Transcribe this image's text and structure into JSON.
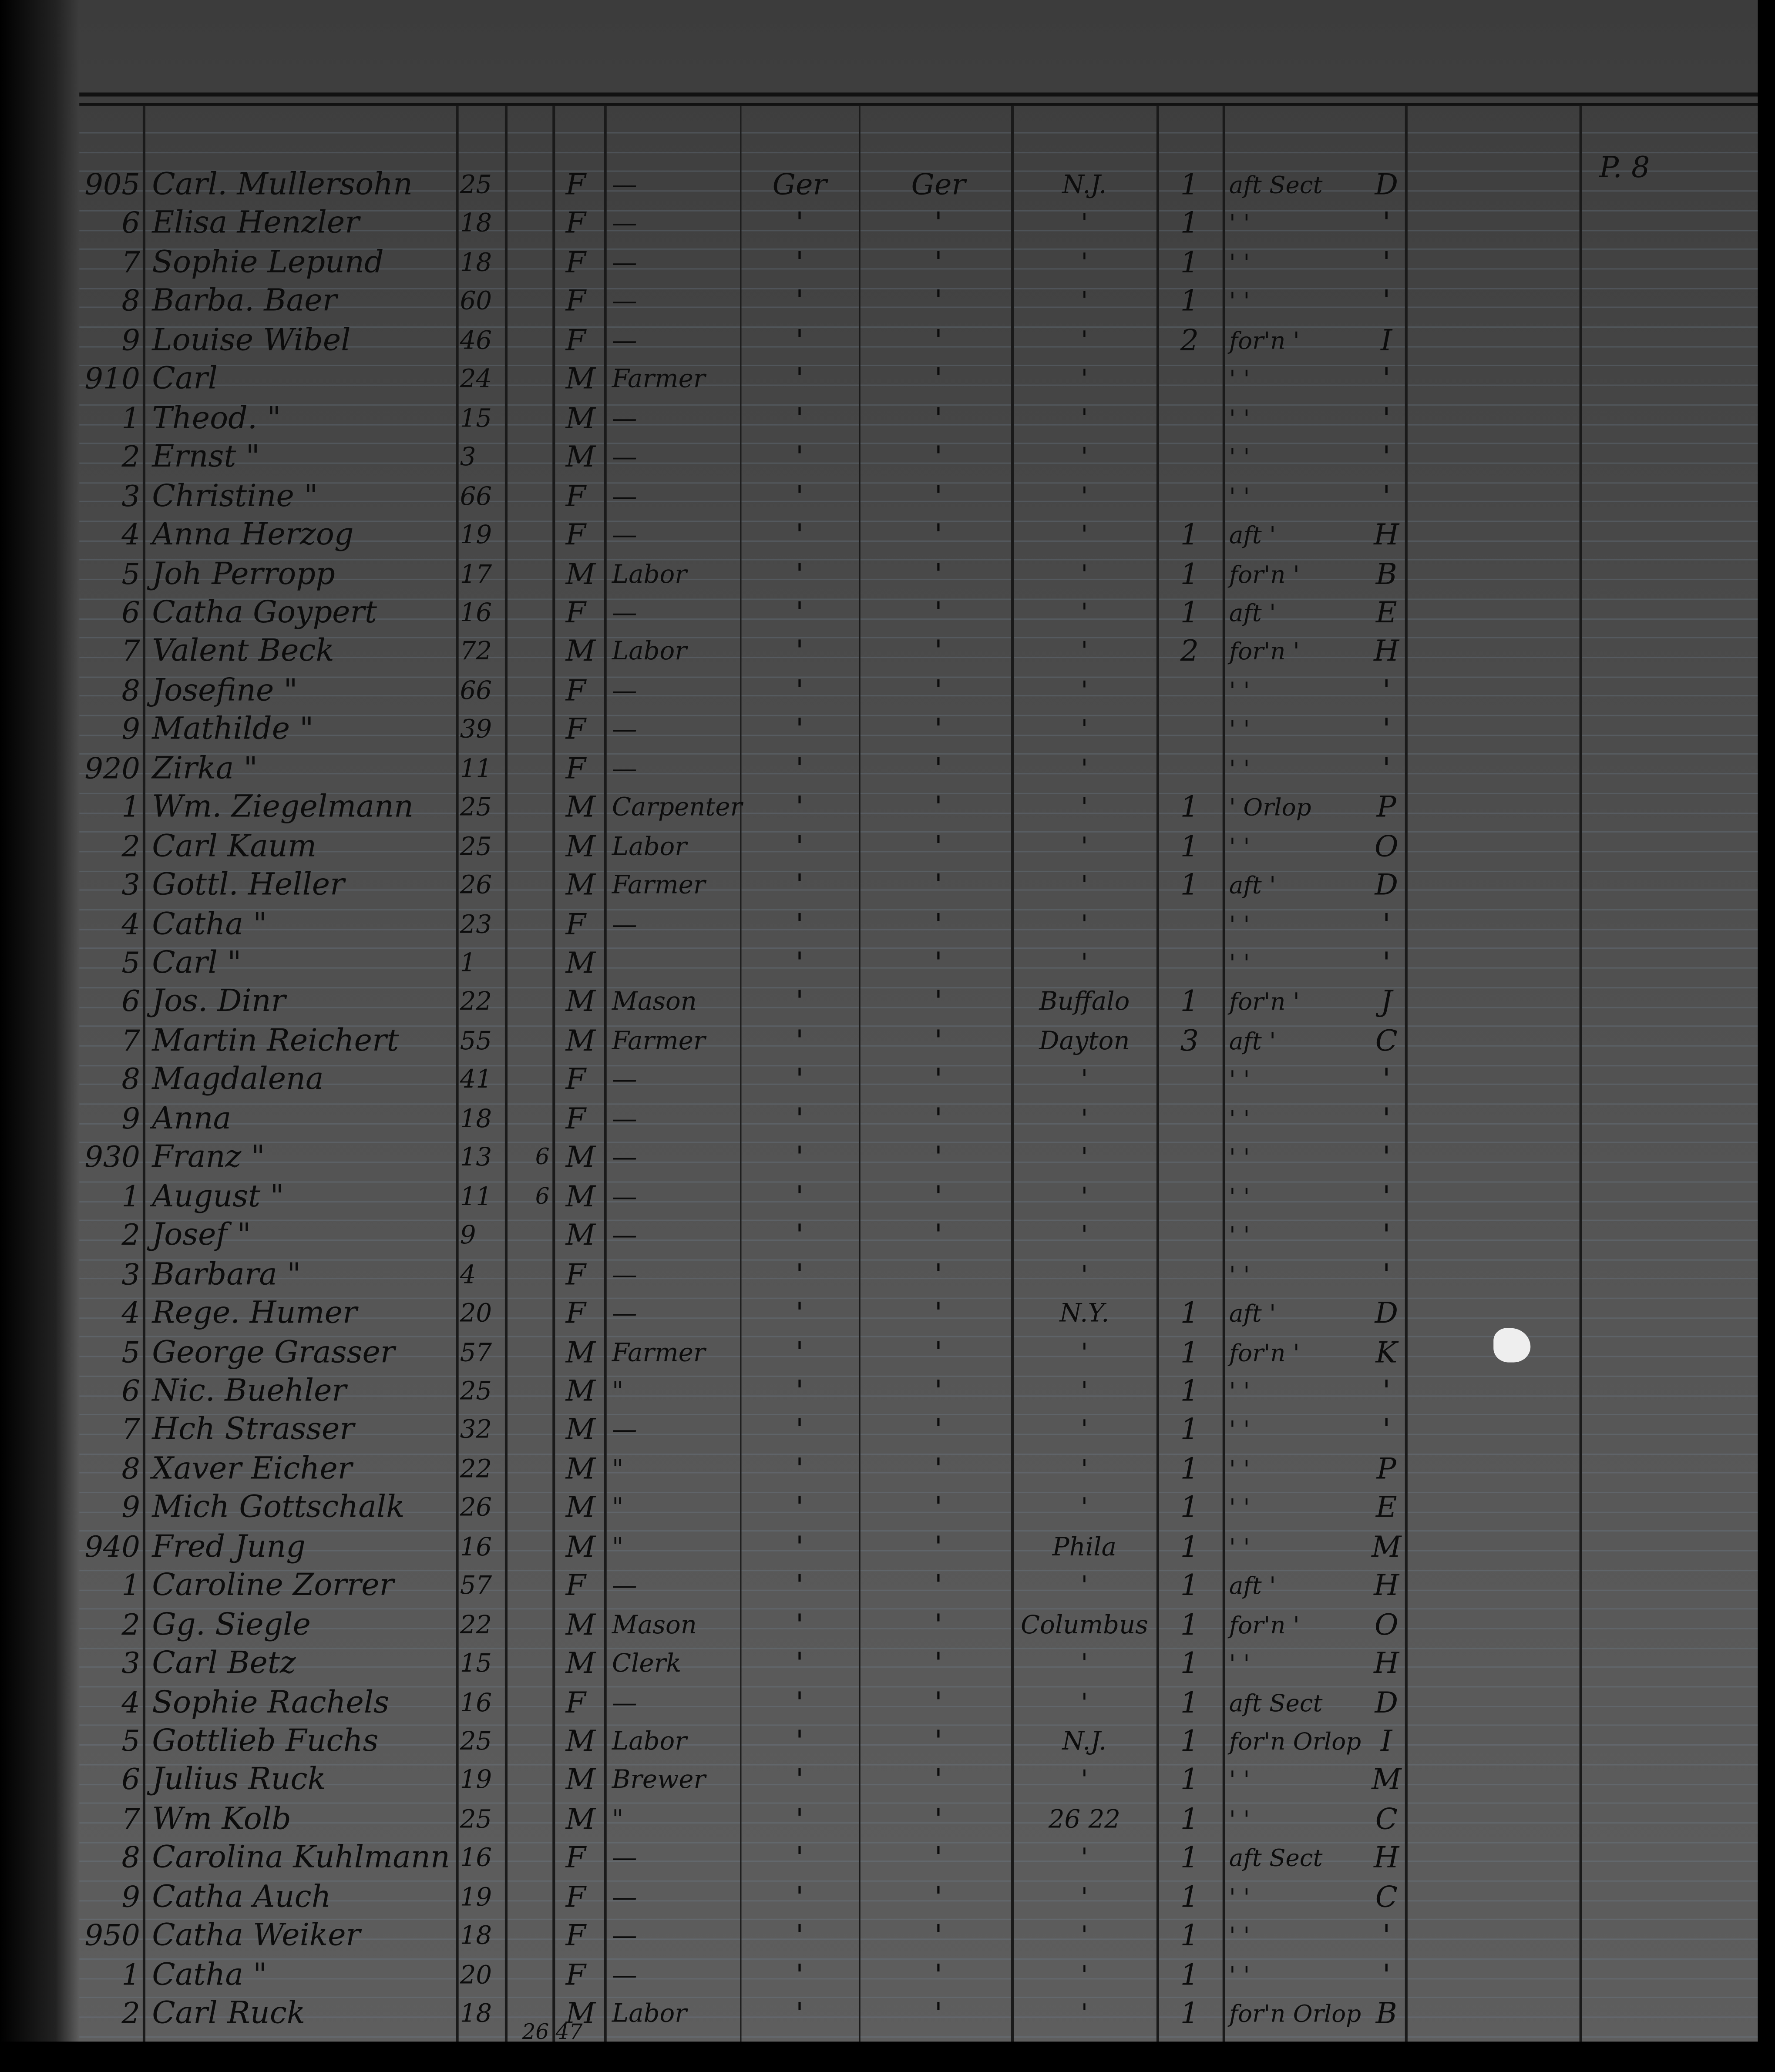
{
  "page_reference": "P. 8",
  "footer_tally": "26  47",
  "rows": [
    {
      "num": "905",
      "name": "Carl. Mullersohn",
      "age": "25",
      "extra": "",
      "sex": "F",
      "occ": "—",
      "c1": "Ger",
      "c2": "Ger",
      "dest": "N.J.",
      "bag": "1",
      "loc": "aft Sect",
      "comp": "D"
    },
    {
      "num": "6",
      "name": "Elisa Henzler",
      "age": "18",
      "extra": "",
      "sex": "F",
      "occ": "—",
      "c1": "'",
      "c2": "'",
      "dest": "'",
      "bag": "1",
      "loc": "'   '",
      "comp": "'"
    },
    {
      "num": "7",
      "name": "Sophie Lepund",
      "age": "18",
      "extra": "",
      "sex": "F",
      "occ": "—",
      "c1": "'",
      "c2": "'",
      "dest": "'",
      "bag": "1",
      "loc": "'   '",
      "comp": "'"
    },
    {
      "num": "8",
      "name": "Barba. Baer",
      "age": "60",
      "extra": "",
      "sex": "F",
      "occ": "—",
      "c1": "'",
      "c2": "'",
      "dest": "'",
      "bag": "1",
      "loc": "'   '",
      "comp": "'"
    },
    {
      "num": "9",
      "name": "Louise Wibel",
      "age": "46",
      "extra": "",
      "sex": "F",
      "occ": "—",
      "c1": "'",
      "c2": "'",
      "dest": "'",
      "bag": "2",
      "loc": "for'n '",
      "comp": "I"
    },
    {
      "num": "910",
      "name": "Carl",
      "age": "24",
      "extra": "",
      "sex": "M",
      "occ": "Farmer",
      "c1": "'",
      "c2": "'",
      "dest": "'",
      "bag": "",
      "loc": "'   '",
      "comp": "'"
    },
    {
      "num": "1",
      "name": "Theod.   \"",
      "age": "15",
      "extra": "",
      "sex": "M",
      "occ": "—",
      "c1": "'",
      "c2": "'",
      "dest": "'",
      "bag": "",
      "loc": "'   '",
      "comp": "'"
    },
    {
      "num": "2",
      "name": "Ernst   \"",
      "age": "3",
      "extra": "",
      "sex": "M",
      "occ": "—",
      "c1": "'",
      "c2": "'",
      "dest": "'",
      "bag": "",
      "loc": "'   '",
      "comp": "'"
    },
    {
      "num": "3",
      "name": "Christine  \"",
      "age": "66",
      "extra": "",
      "sex": "F",
      "occ": "—",
      "c1": "'",
      "c2": "'",
      "dest": "'",
      "bag": "",
      "loc": "'   '",
      "comp": "'"
    },
    {
      "num": "4",
      "name": "Anna Herzog",
      "age": "19",
      "extra": "",
      "sex": "F",
      "occ": "—",
      "c1": "'",
      "c2": "'",
      "dest": "'",
      "bag": "1",
      "loc": "aft '",
      "comp": "H"
    },
    {
      "num": "5",
      "name": "Joh Perropp",
      "age": "17",
      "extra": "",
      "sex": "M",
      "occ": "Labor",
      "c1": "'",
      "c2": "'",
      "dest": "'",
      "bag": "1",
      "loc": "for'n '",
      "comp": "B"
    },
    {
      "num": "6",
      "name": "Catha Goypert",
      "age": "16",
      "extra": "",
      "sex": "F",
      "occ": "—",
      "c1": "'",
      "c2": "'",
      "dest": "'",
      "bag": "1",
      "loc": "aft '",
      "comp": "E"
    },
    {
      "num": "7",
      "name": "Valent Beck",
      "age": "72",
      "extra": "",
      "sex": "M",
      "occ": "Labor",
      "c1": "'",
      "c2": "'",
      "dest": "'",
      "bag": "2",
      "loc": "for'n '",
      "comp": "H"
    },
    {
      "num": "8",
      "name": "Josefine  \"",
      "age": "66",
      "extra": "",
      "sex": "F",
      "occ": "—",
      "c1": "'",
      "c2": "'",
      "dest": "'",
      "bag": "",
      "loc": "'   '",
      "comp": "'"
    },
    {
      "num": "9",
      "name": "Mathilde  \"",
      "age": "39",
      "extra": "",
      "sex": "F",
      "occ": "—",
      "c1": "'",
      "c2": "'",
      "dest": "'",
      "bag": "",
      "loc": "'   '",
      "comp": "'"
    },
    {
      "num": "920",
      "name": "Zirka  \"",
      "age": "11",
      "extra": "",
      "sex": "F",
      "occ": "—",
      "c1": "'",
      "c2": "'",
      "dest": "'",
      "bag": "",
      "loc": "'   '",
      "comp": "'"
    },
    {
      "num": "1",
      "name": "Wm. Ziegelmann",
      "age": "25",
      "extra": "",
      "sex": "M",
      "occ": "Carpenter",
      "c1": "'",
      "c2": "'",
      "dest": "'",
      "bag": "1",
      "loc": "' Orlop",
      "comp": "P"
    },
    {
      "num": "2",
      "name": "Carl Kaum",
      "age": "25",
      "extra": "",
      "sex": "M",
      "occ": "Labor",
      "c1": "'",
      "c2": "'",
      "dest": "'",
      "bag": "1",
      "loc": "'   '",
      "comp": "O"
    },
    {
      "num": "3",
      "name": "Gottl. Heller",
      "age": "26",
      "extra": "",
      "sex": "M",
      "occ": "Farmer",
      "c1": "'",
      "c2": "'",
      "dest": "'",
      "bag": "1",
      "loc": "aft '",
      "comp": "D"
    },
    {
      "num": "4",
      "name": "Catha   \"",
      "age": "23",
      "extra": "",
      "sex": "F",
      "occ": "—",
      "c1": "'",
      "c2": "'",
      "dest": "'",
      "bag": "",
      "loc": "'   '",
      "comp": "'"
    },
    {
      "num": "5",
      "name": "Carl   \"",
      "age": "1",
      "extra": "",
      "sex": "M",
      "occ": "",
      "c1": "'",
      "c2": "'",
      "dest": "'",
      "bag": "",
      "loc": "'   '",
      "comp": "'"
    },
    {
      "num": "6",
      "name": "Jos. Dinr",
      "age": "22",
      "extra": "",
      "sex": "M",
      "occ": "Mason",
      "c1": "'",
      "c2": "'",
      "dest": "Buffalo",
      "bag": "1",
      "loc": "for'n '",
      "comp": "J"
    },
    {
      "num": "7",
      "name": "Martin Reichert",
      "age": "55",
      "extra": "",
      "sex": "M",
      "occ": "Farmer",
      "c1": "'",
      "c2": "'",
      "dest": "Dayton",
      "bag": "3",
      "loc": "aft '",
      "comp": "C"
    },
    {
      "num": "8",
      "name": "Magdalena",
      "age": "41",
      "extra": "",
      "sex": "F",
      "occ": "—",
      "c1": "'",
      "c2": "'",
      "dest": "'",
      "bag": "",
      "loc": "'   '",
      "comp": "'"
    },
    {
      "num": "9",
      "name": "Anna",
      "age": "18",
      "extra": "",
      "sex": "F",
      "occ": "—",
      "c1": "'",
      "c2": "'",
      "dest": "'",
      "bag": "",
      "loc": "'   '",
      "comp": "'"
    },
    {
      "num": "930",
      "name": "Franz   \"",
      "age": "13",
      "extra": "6",
      "sex": "M",
      "occ": "—",
      "c1": "'",
      "c2": "'",
      "dest": "'",
      "bag": "",
      "loc": "'   '",
      "comp": "'"
    },
    {
      "num": "1",
      "name": "August   \"",
      "age": "11",
      "extra": "6",
      "sex": "M",
      "occ": "—",
      "c1": "'",
      "c2": "'",
      "dest": "'",
      "bag": "",
      "loc": "'   '",
      "comp": "'"
    },
    {
      "num": "2",
      "name": "Josef   \"",
      "age": "9",
      "extra": "",
      "sex": "M",
      "occ": "—",
      "c1": "'",
      "c2": "'",
      "dest": "'",
      "bag": "",
      "loc": "'   '",
      "comp": "'"
    },
    {
      "num": "3",
      "name": "Barbara  \"",
      "age": "4",
      "extra": "",
      "sex": "F",
      "occ": "—",
      "c1": "'",
      "c2": "'",
      "dest": "'",
      "bag": "",
      "loc": "'   '",
      "comp": "'"
    },
    {
      "num": "4",
      "name": "Rege. Humer",
      "age": "20",
      "extra": "",
      "sex": "F",
      "occ": "—",
      "c1": "'",
      "c2": "'",
      "dest": "N.Y.",
      "bag": "1",
      "loc": "aft '",
      "comp": "D"
    },
    {
      "num": "5",
      "name": "George Grasser",
      "age": "57",
      "extra": "",
      "sex": "M",
      "occ": "Farmer",
      "c1": "'",
      "c2": "'",
      "dest": "'",
      "bag": "1",
      "loc": "for'n '",
      "comp": "K"
    },
    {
      "num": "6",
      "name": "Nic. Buehler",
      "age": "25",
      "extra": "",
      "sex": "M",
      "occ": "\"",
      "c1": "'",
      "c2": "'",
      "dest": "'",
      "bag": "1",
      "loc": "'   '",
      "comp": "'"
    },
    {
      "num": "7",
      "name": "Hch Strasser",
      "age": "32",
      "extra": "",
      "sex": "M",
      "occ": "—",
      "c1": "'",
      "c2": "'",
      "dest": "'",
      "bag": "1",
      "loc": "'   '",
      "comp": "'"
    },
    {
      "num": "8",
      "name": "Xaver Eicher",
      "age": "22",
      "extra": "",
      "sex": "M",
      "occ": "\"",
      "c1": "'",
      "c2": "'",
      "dest": "'",
      "bag": "1",
      "loc": "'   '",
      "comp": "P"
    },
    {
      "num": "9",
      "name": "Mich Gottschalk",
      "age": "26",
      "extra": "",
      "sex": "M",
      "occ": "\"",
      "c1": "'",
      "c2": "'",
      "dest": "'",
      "bag": "1",
      "loc": "'   '",
      "comp": "E"
    },
    {
      "num": "940",
      "name": "Fred Jung",
      "age": "16",
      "extra": "",
      "sex": "M",
      "occ": "\"",
      "c1": "'",
      "c2": "'",
      "dest": "Phila",
      "bag": "1",
      "loc": "'   '",
      "comp": "M"
    },
    {
      "num": "1",
      "name": "Caroline Zorrer",
      "age": "57",
      "extra": "",
      "sex": "F",
      "occ": "—",
      "c1": "'",
      "c2": "'",
      "dest": "'",
      "bag": "1",
      "loc": "aft '",
      "comp": "H"
    },
    {
      "num": "2",
      "name": "Gg. Siegle",
      "age": "22",
      "extra": "",
      "sex": "M",
      "occ": "Mason",
      "c1": "'",
      "c2": "'",
      "dest": "Columbus",
      "bag": "1",
      "loc": "for'n '",
      "comp": "O"
    },
    {
      "num": "3",
      "name": "Carl Betz",
      "age": "15",
      "extra": "",
      "sex": "M",
      "occ": "Clerk",
      "c1": "'",
      "c2": "'",
      "dest": "'",
      "bag": "1",
      "loc": "'   '",
      "comp": "H"
    },
    {
      "num": "4",
      "name": "Sophie Rachels",
      "age": "16",
      "extra": "",
      "sex": "F",
      "occ": "—",
      "c1": "'",
      "c2": "'",
      "dest": "'",
      "bag": "1",
      "loc": "aft Sect",
      "comp": "D"
    },
    {
      "num": "5",
      "name": "Gottlieb Fuchs",
      "age": "25",
      "extra": "",
      "sex": "M",
      "occ": "Labor",
      "c1": "'",
      "c2": "'",
      "dest": "N.J.",
      "bag": "1",
      "loc": "for'n Orlop",
      "comp": "I"
    },
    {
      "num": "6",
      "name": "Julius Ruck",
      "age": "19",
      "extra": "",
      "sex": "M",
      "occ": "Brewer",
      "c1": "'",
      "c2": "'",
      "dest": "'",
      "bag": "1",
      "loc": "'   '",
      "comp": "M"
    },
    {
      "num": "7",
      "name": "Wm Kolb",
      "age": "25",
      "extra": "",
      "sex": "M",
      "occ": "\"",
      "c1": "'",
      "c2": "'",
      "dest": "26  22",
      "bag": "1",
      "loc": "'   '",
      "comp": "C"
    },
    {
      "num": "8",
      "name": "Carolina Kuhlmann",
      "age": "16",
      "extra": "",
      "sex": "F",
      "occ": "—",
      "c1": "'",
      "c2": "'",
      "dest": "'",
      "bag": "1",
      "loc": "aft Sect",
      "comp": "H"
    },
    {
      "num": "9",
      "name": "Catha Auch",
      "age": "19",
      "extra": "",
      "sex": "F",
      "occ": "—",
      "c1": "'",
      "c2": "'",
      "dest": "'",
      "bag": "1",
      "loc": "'   '",
      "comp": "C"
    },
    {
      "num": "950",
      "name": "Catha Weiker",
      "age": "18",
      "extra": "",
      "sex": "F",
      "occ": "—",
      "c1": "'",
      "c2": "'",
      "dest": "'",
      "bag": "1",
      "loc": "'   '",
      "comp": "'"
    },
    {
      "num": "1",
      "name": "Catha   \"",
      "age": "20",
      "extra": "",
      "sex": "F",
      "occ": "—",
      "c1": "'",
      "c2": "'",
      "dest": "'",
      "bag": "1",
      "loc": "'   '",
      "comp": "'"
    },
    {
      "num": "2",
      "name": "Carl Ruck",
      "age": "18",
      "extra": "",
      "sex": "M",
      "occ": "Labor",
      "c1": "'",
      "c2": "'",
      "dest": "'",
      "bag": "1",
      "loc": "for'n Orlop",
      "comp": "B"
    }
  ]
}
